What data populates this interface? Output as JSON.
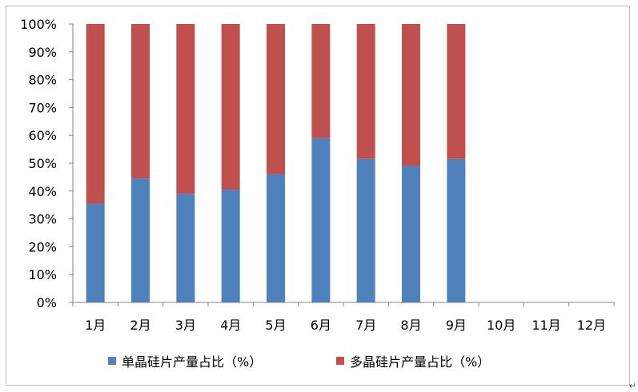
{
  "chart_data": {
    "type": "bar",
    "stacked": true,
    "categories": [
      "1月",
      "2月",
      "3月",
      "4月",
      "5月",
      "6月",
      "7月",
      "8月",
      "9月",
      "10月",
      "11月",
      "12月"
    ],
    "series": [
      {
        "name": "单晶硅片产量占比（%）",
        "color": "#4f81bd",
        "values": [
          35.5,
          44.5,
          39,
          40.5,
          46,
          59,
          51.5,
          49,
          51.5,
          null,
          null,
          null
        ]
      },
      {
        "name": "多晶硅片产量占比（%）",
        "color": "#c0504d",
        "values": [
          64.5,
          55.5,
          61,
          59.5,
          54,
          41,
          48.5,
          51,
          48.5,
          null,
          null,
          null
        ]
      }
    ],
    "y_ticks": [
      "0%",
      "10%",
      "20%",
      "30%",
      "40%",
      "50%",
      "60%",
      "70%",
      "80%",
      "90%",
      "100%"
    ],
    "ylim": [
      0,
      100
    ],
    "grid": false,
    "legend_position": "bottom"
  }
}
